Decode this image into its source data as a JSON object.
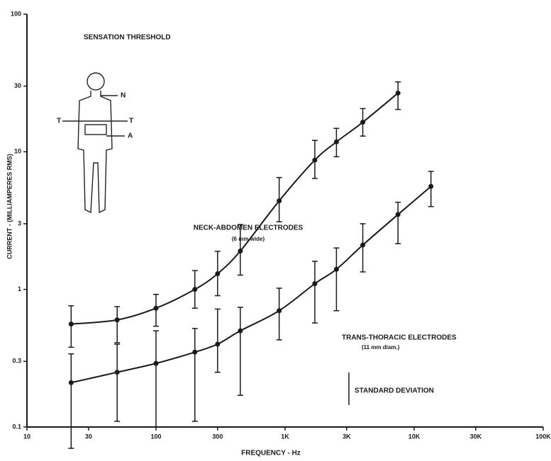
{
  "chart_data": {
    "type": "errorbar-line",
    "xlabel": "FREQUENCY - Hz",
    "ylabel": "CURRENT - (MILLIAMPERES RMS)",
    "x_log": true,
    "y_log": true,
    "grid": false,
    "xlim": [
      10,
      100000
    ],
    "xticks": [
      10,
      30,
      100,
      300,
      {
        "value": 1000,
        "label": "1K"
      },
      {
        "value": 3000,
        "label": "3K"
      },
      {
        "value": 10000,
        "label": "10K"
      },
      {
        "value": 30000,
        "label": "30K"
      },
      {
        "value": 100000,
        "label": "100K"
      }
    ],
    "ylim": [
      0.1,
      100
    ],
    "yticks": [
      0.1,
      0.3,
      1,
      3,
      10,
      30,
      100
    ],
    "annotations": {
      "sensation": "SENSATION THRESHOLD",
      "neck_abdomen": "NECK-ABDOMEN ELECTRODES",
      "neck_abdomen_note": "(6 mm wide)",
      "trans_thoracic": "TRANS-THORACIC ELECTRODES",
      "trans_thoracic_note": "(11 mm diam.)",
      "std": "STANDARD DEVIATION",
      "body_n": "N",
      "body_t_left": "T",
      "body_t_right": "T",
      "body_a": "A"
    },
    "series": [
      {
        "name": "NECK-ABDOMEN ELECTRODES",
        "color": "#1a1a1a",
        "x": [
          22,
          50,
          100,
          200,
          300,
          450,
          900,
          1700,
          2500,
          4000,
          7500
        ],
        "values": [
          0.56,
          0.6,
          0.73,
          1.0,
          1.3,
          1.9,
          4.4,
          8.7,
          11.8,
          16.4,
          26.7
        ],
        "low": [
          0.38,
          0.41,
          0.54,
          0.73,
          0.9,
          1.27,
          3.1,
          6.4,
          9.2,
          13.0,
          20.3
        ],
        "high": [
          0.76,
          0.75,
          0.92,
          1.37,
          1.89,
          2.96,
          6.5,
          12.1,
          14.8,
          20.6,
          32.2
        ]
      },
      {
        "name": "TRANS-THORACIC ELECTRODES",
        "color": "#1a1a1a",
        "x": [
          22,
          50,
          100,
          200,
          300,
          450,
          900,
          1700,
          2500,
          4000,
          7500,
          13500
        ],
        "values": [
          0.21,
          0.25,
          0.29,
          0.35,
          0.4,
          0.5,
          0.7,
          1.1,
          1.4,
          2.1,
          3.5,
          5.6
        ],
        "low": [
          0.07,
          0.11,
          0.1,
          0.11,
          0.25,
          0.17,
          0.43,
          0.57,
          0.7,
          1.34,
          2.15,
          4.0
        ],
        "high": [
          0.34,
          0.4,
          0.5,
          0.52,
          0.72,
          0.74,
          1.02,
          1.6,
          2.0,
          3.0,
          4.3,
          7.2
        ]
      }
    ]
  }
}
